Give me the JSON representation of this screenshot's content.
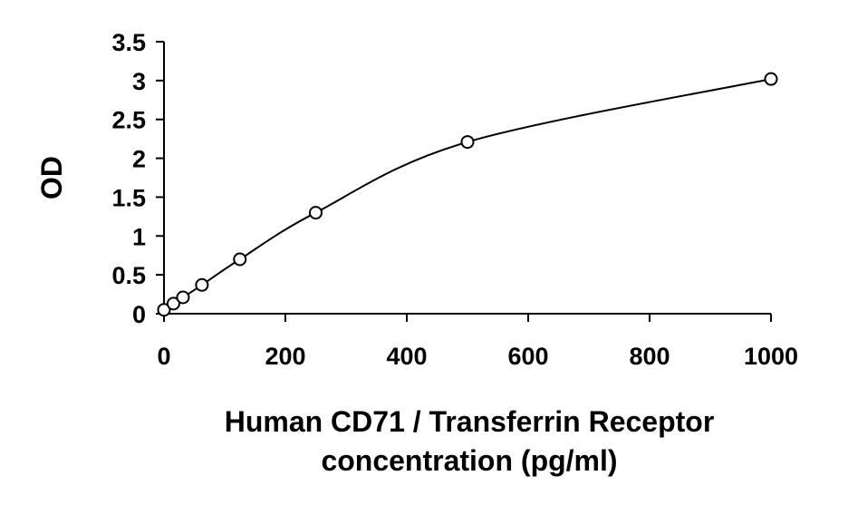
{
  "chart_data": {
    "type": "scatter",
    "title": "",
    "xlabel": "Human CD71 / Transferrin Receptor\nconcentration (pg/ml)",
    "ylabel": "OD",
    "xlim": [
      0,
      1000
    ],
    "ylim": [
      0,
      3.5
    ],
    "x_ticks": [
      0,
      200,
      400,
      600,
      800,
      1000
    ],
    "x_tick_labels": [
      "0",
      "200",
      "400",
      "600",
      "800",
      "1000"
    ],
    "y_ticks": [
      0,
      0.5,
      1,
      1.5,
      2,
      2.5,
      3,
      3.5
    ],
    "y_tick_labels": [
      "0",
      "0.5",
      "1",
      "1.5",
      "2",
      "2.5",
      "3",
      "3.5"
    ],
    "grid": false,
    "legend": false,
    "series": [
      {
        "marker": "open-circle",
        "fit": "smooth-curve",
        "x": [
          0,
          15.6,
          31.3,
          62.5,
          125,
          250,
          500,
          1000
        ],
        "y": [
          0.05,
          0.13,
          0.21,
          0.37,
          0.7,
          1.3,
          2.21,
          3.02
        ]
      }
    ]
  }
}
